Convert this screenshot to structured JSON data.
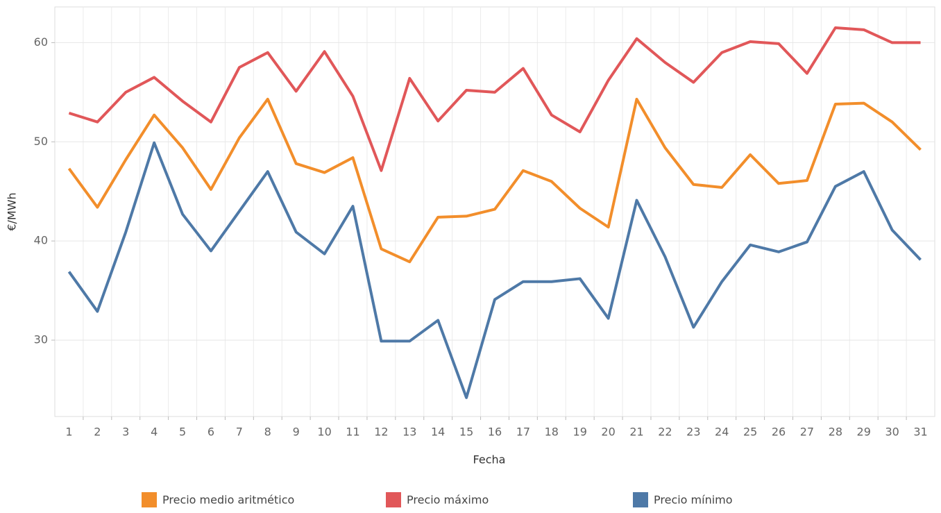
{
  "chart_data": {
    "type": "line",
    "x_label": "Fecha",
    "y_label": "€/MWh",
    "categories": [
      "1",
      "2",
      "3",
      "4",
      "5",
      "6",
      "7",
      "8",
      "9",
      "10",
      "11",
      "12",
      "13",
      "14",
      "15",
      "16",
      "17",
      "18",
      "19",
      "20",
      "21",
      "22",
      "23",
      "24",
      "25",
      "26",
      "27",
      "28",
      "29",
      "30",
      "31"
    ],
    "series": [
      {
        "name": "Precio medio aritmético",
        "color": "#f28e2b",
        "values": [
          47.3,
          43.4,
          48.2,
          52.7,
          49.4,
          45.2,
          50.4,
          54.3,
          47.8,
          46.9,
          48.4,
          39.2,
          37.9,
          42.4,
          42.5,
          43.2,
          47.1,
          46.0,
          43.3,
          41.4,
          54.3,
          49.4,
          45.7,
          45.4,
          48.7,
          45.8,
          46.1,
          53.8,
          53.9,
          52.0,
          49.2
        ]
      },
      {
        "name": "Precio máximo",
        "color": "#e15759",
        "values": [
          52.9,
          52.0,
          55.0,
          56.5,
          54.1,
          52.0,
          57.5,
          59.0,
          55.1,
          59.1,
          54.6,
          47.1,
          56.4,
          52.1,
          55.2,
          55.0,
          57.4,
          52.7,
          51.0,
          56.2,
          60.4,
          58.0,
          56.0,
          59.0,
          60.1,
          59.9,
          56.9,
          61.5,
          61.3,
          60.0,
          60.0
        ]
      },
      {
        "name": "Precio mínimo",
        "color": "#4e79a7",
        "values": [
          36.9,
          32.9,
          40.9,
          49.9,
          42.7,
          39.0,
          43.0,
          47.0,
          40.9,
          38.7,
          43.5,
          29.9,
          29.9,
          32.0,
          24.2,
          34.1,
          35.9,
          35.9,
          36.2,
          32.2,
          44.1,
          38.4,
          31.3,
          35.9,
          39.6,
          38.9,
          39.9,
          45.5,
          47.0,
          41.1,
          38.1
        ]
      }
    ],
    "ylim": [
      22.3,
      63.6
    ],
    "yticks": [
      30,
      40,
      50,
      60
    ],
    "grid": true,
    "legend": "bottom"
  }
}
